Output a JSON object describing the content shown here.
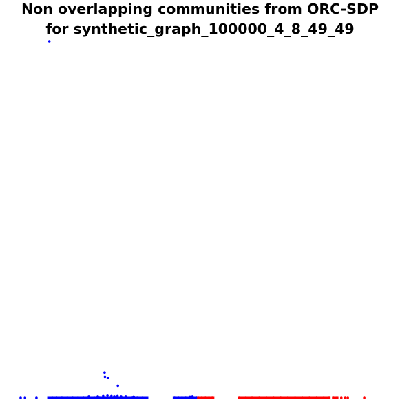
{
  "chart_data": {
    "type": "scatter",
    "title_lines": [
      "Non overlapping communities from ORC-SDP",
      "for synthetic_graph_100000_4_8_49_49"
    ],
    "xlabel": "",
    "ylabel": "",
    "axes_visible": false,
    "grid": false,
    "legend": "none",
    "xlim": [
      0,
      100
    ],
    "ylim": [
      0,
      100
    ],
    "series": [
      {
        "color": "#0000ff",
        "points": [
          [
            8.0,
            100.0
          ],
          [
            0.0,
            0.0
          ],
          [
            1.2,
            0.0
          ],
          [
            4.4,
            0.0
          ],
          [
            8.8,
            0.0
          ],
          [
            10.0,
            0.0
          ],
          [
            11.5,
            0.0
          ],
          [
            13.0,
            0.0
          ],
          [
            14.5,
            0.0
          ],
          [
            16.0,
            0.0
          ],
          [
            17.5,
            0.0
          ],
          [
            19.0,
            0.0
          ],
          [
            20.5,
            0.0
          ],
          [
            22.0,
            0.0
          ],
          [
            23.5,
            0.0
          ],
          [
            25.0,
            0.0
          ],
          [
            26.5,
            0.0
          ],
          [
            28.0,
            0.0
          ],
          [
            29.5,
            0.0
          ],
          [
            31.0,
            0.0
          ],
          [
            32.5,
            0.0
          ],
          [
            34.0,
            0.0
          ],
          [
            19.0,
            0.4
          ],
          [
            21.5,
            0.4
          ],
          [
            23.0,
            0.5
          ],
          [
            24.2,
            0.6
          ],
          [
            25.3,
            0.5
          ],
          [
            26.1,
            0.4
          ],
          [
            27.0,
            0.5
          ],
          [
            28.0,
            0.4
          ],
          [
            29.3,
            0.4
          ],
          [
            31.5,
            0.3
          ],
          [
            23.4,
            7.1
          ],
          [
            23.5,
            5.9
          ],
          [
            24.3,
            5.6
          ],
          [
            27.1,
            3.4
          ],
          [
            42.9,
            0.0
          ],
          [
            44.0,
            0.0
          ],
          [
            45.0,
            0.0
          ],
          [
            46.0,
            0.0
          ],
          [
            47.0,
            0.0
          ],
          [
            48.0,
            0.0
          ],
          [
            49.0,
            0.0
          ],
          [
            47.2,
            0.3
          ],
          [
            47.9,
            0.4
          ]
        ]
      },
      {
        "color": "#ff0000",
        "points": [
          [
            49.5,
            0.0
          ],
          [
            50.5,
            0.0
          ],
          [
            51.5,
            0.0
          ],
          [
            52.5,
            0.0
          ],
          [
            53.4,
            0.0
          ],
          [
            61.0,
            0.0
          ],
          [
            62.8,
            0.0
          ],
          [
            64.5,
            0.0
          ],
          [
            66.5,
            0.0
          ],
          [
            68.5,
            0.0
          ],
          [
            70.5,
            0.0
          ],
          [
            72.5,
            0.0
          ],
          [
            74.5,
            0.0
          ],
          [
            76.5,
            0.0
          ],
          [
            78.5,
            0.0
          ],
          [
            80.5,
            0.0
          ],
          [
            82.5,
            0.0
          ],
          [
            84.5,
            0.0
          ],
          [
            86.0,
            0.0
          ],
          [
            87.2,
            0.0
          ],
          [
            88.2,
            0.0
          ],
          [
            89.4,
            0.0
          ],
          [
            90.5,
            0.0
          ],
          [
            91.2,
            0.0
          ],
          [
            95.8,
            0.0
          ]
        ]
      }
    ],
    "segments": [
      {
        "color": "#0000ff",
        "x0": 7.4,
        "x1": 35.6,
        "y": 0.0
      },
      {
        "color": "#0000ff",
        "x0": 42.4,
        "x1": 49.3,
        "y": 0.0
      },
      {
        "color": "#ff0000",
        "x0": 49.3,
        "x1": 54.0,
        "y": 0.0
      },
      {
        "color": "#ff0000",
        "x0": 60.6,
        "x1": 86.4,
        "y": 0.0
      },
      {
        "color": "#ff0000",
        "x0": 86.8,
        "x1": 88.6,
        "y": 0.0
      }
    ]
  }
}
